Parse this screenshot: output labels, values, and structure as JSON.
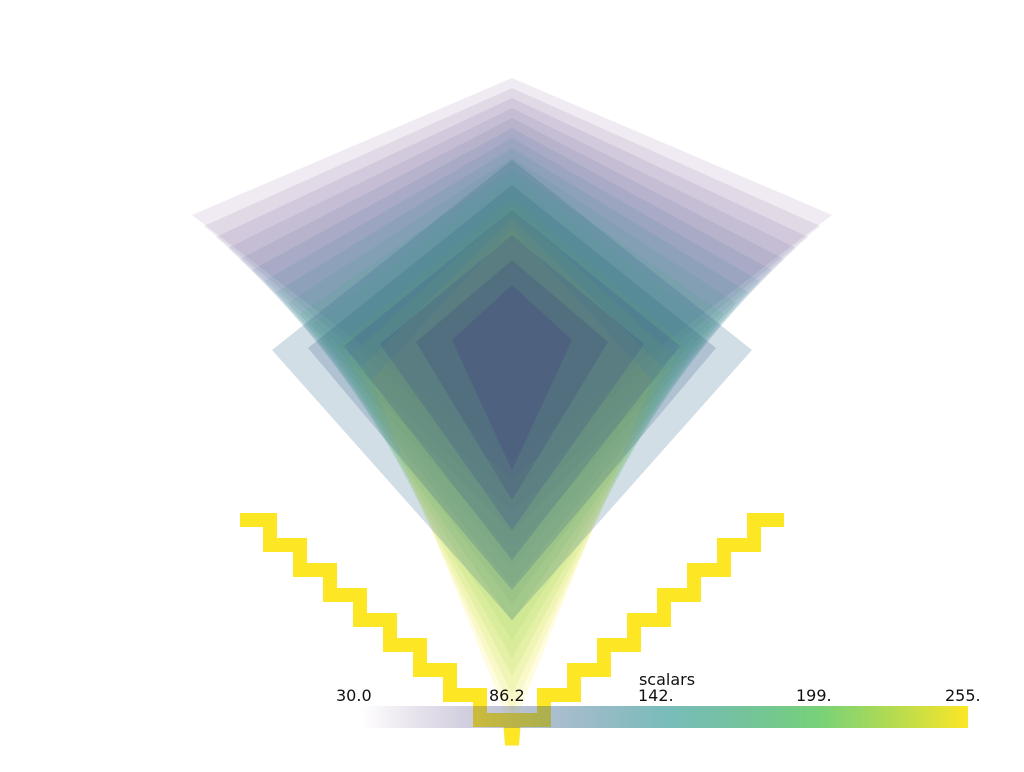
{
  "scalar_bar": {
    "title": "scalars",
    "ticks": [
      "30.0",
      "86.2",
      "142.",
      "199.",
      "255."
    ],
    "range": [
      30.0,
      255.0
    ],
    "colormap": "viridis"
  },
  "colors": {
    "background": "#ffffff",
    "viridis_stops": [
      "#440154",
      "#3b528b",
      "#21908d",
      "#5ec962",
      "#fde725"
    ]
  }
}
